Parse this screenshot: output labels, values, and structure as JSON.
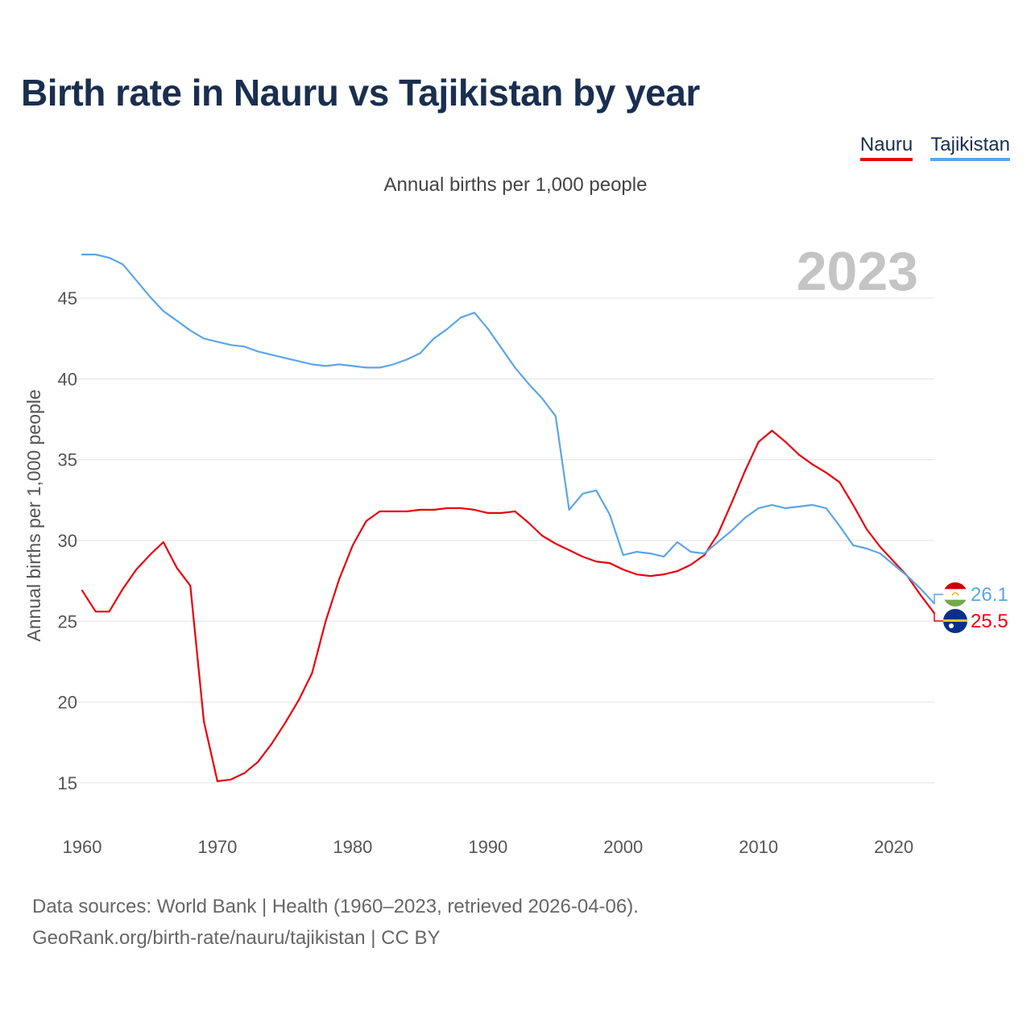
{
  "header": {
    "title": "Birth rate in Nauru vs Tajikistan by year",
    "subtitle": "Annual births per 1,000 people"
  },
  "legend": {
    "items": [
      {
        "label": "Nauru",
        "color": "#e8000b"
      },
      {
        "label": "Tajikistan",
        "color": "#5da5e6"
      }
    ]
  },
  "footer": {
    "line1": "Data sources: World Bank | Health (1960–2023, retrieved 2026-04-06).",
    "line2": "GeoRank.org/birth-rate/nauru/tajikistan | CC BY"
  },
  "chart_data": {
    "type": "line",
    "title": "Birth rate in Nauru vs Tajikistan by year",
    "subtitle": "Annual births per 1,000 people",
    "xlabel": "",
    "ylabel": "Annual births per 1,000 people",
    "year_label": "2023",
    "xlim": [
      1960,
      2023
    ],
    "ylim": [
      12.5,
      48
    ],
    "x_ticks": [
      1960,
      1970,
      1980,
      1990,
      2000,
      2010,
      2020
    ],
    "y_ticks": [
      15,
      20,
      25,
      30,
      35,
      40,
      45
    ],
    "grid": true,
    "legend_position": "top-right",
    "x": [
      1960,
      1961,
      1962,
      1963,
      1964,
      1965,
      1966,
      1967,
      1968,
      1969,
      1970,
      1971,
      1972,
      1973,
      1974,
      1975,
      1976,
      1977,
      1978,
      1979,
      1980,
      1981,
      1982,
      1983,
      1984,
      1985,
      1986,
      1987,
      1988,
      1989,
      1990,
      1991,
      1992,
      1993,
      1994,
      1995,
      1996,
      1997,
      1998,
      1999,
      2000,
      2001,
      2002,
      2003,
      2004,
      2005,
      2006,
      2007,
      2008,
      2009,
      2010,
      2011,
      2012,
      2013,
      2014,
      2015,
      2016,
      2017,
      2018,
      2019,
      2020,
      2021,
      2022,
      2023
    ],
    "series": [
      {
        "name": "Nauru",
        "color": "#e8000b",
        "end_label": "25.5",
        "values": [
          26.9,
          25.6,
          25.6,
          27.0,
          28.2,
          29.1,
          29.9,
          28.3,
          27.2,
          18.8,
          15.1,
          15.2,
          15.6,
          16.3,
          17.4,
          18.7,
          20.1,
          21.8,
          25.0,
          27.6,
          29.7,
          31.2,
          31.8,
          31.8,
          31.8,
          31.9,
          31.9,
          32.0,
          32.0,
          31.9,
          31.7,
          31.7,
          31.8,
          31.1,
          30.3,
          29.8,
          29.4,
          29.0,
          28.7,
          28.6,
          28.2,
          27.9,
          27.8,
          27.9,
          28.1,
          28.5,
          29.1,
          30.4,
          32.3,
          34.3,
          36.1,
          36.8,
          36.1,
          35.3,
          34.7,
          34.2,
          33.6,
          32.2,
          30.7,
          29.6,
          28.7,
          27.8,
          26.6,
          25.5
        ]
      },
      {
        "name": "Tajikistan",
        "color": "#5da5e6",
        "end_label": "26.1",
        "values": [
          47.7,
          47.7,
          47.5,
          47.1,
          46.1,
          45.1,
          44.2,
          43.6,
          43.0,
          42.5,
          42.3,
          42.1,
          42.0,
          41.7,
          41.5,
          41.3,
          41.1,
          40.9,
          40.8,
          40.9,
          40.8,
          40.7,
          40.7,
          40.9,
          41.2,
          41.6,
          42.5,
          43.1,
          43.8,
          44.1,
          43.1,
          41.9,
          40.7,
          39.7,
          38.8,
          37.7,
          31.9,
          32.9,
          33.1,
          31.6,
          29.1,
          29.3,
          29.2,
          29.0,
          29.9,
          29.3,
          29.2,
          29.9,
          30.6,
          31.4,
          32.0,
          32.2,
          32.0,
          32.1,
          32.2,
          32.0,
          30.9,
          29.7,
          29.5,
          29.2,
          28.5,
          27.8,
          27.0,
          26.1
        ]
      }
    ]
  }
}
